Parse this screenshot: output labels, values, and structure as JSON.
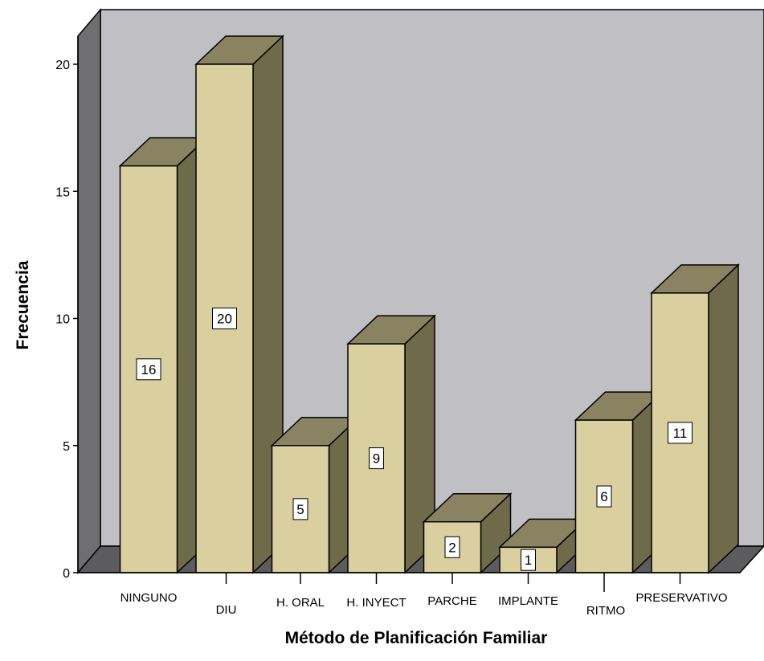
{
  "chart_data": {
    "type": "bar",
    "style": "3d",
    "xlabel": "Método de Planificación Familiar",
    "ylabel": "Frecuencia",
    "categories": [
      "NINGUNO",
      "DIU",
      "H. ORAL",
      "H. INYECT",
      "PARCHE",
      "IMPLANTE",
      "RITMO",
      "PRESERVATIVO"
    ],
    "values": [
      16,
      20,
      5,
      9,
      2,
      1,
      6,
      11
    ],
    "ylim": [
      0,
      20
    ],
    "yticks": [
      "0",
      "5",
      "10",
      "15",
      "20"
    ],
    "data_labels": [
      "16",
      "20",
      "5",
      "9",
      "2",
      "1",
      "6",
      "11"
    ],
    "grid": false,
    "colors": {
      "bar_front": "#d9cf9f",
      "bar_top": "#8a8362",
      "bar_side": "#6e6a4a",
      "back_wall": "#c0c0c4",
      "side_wall": "#6f6f71",
      "floor": "#5c5c5e"
    }
  }
}
